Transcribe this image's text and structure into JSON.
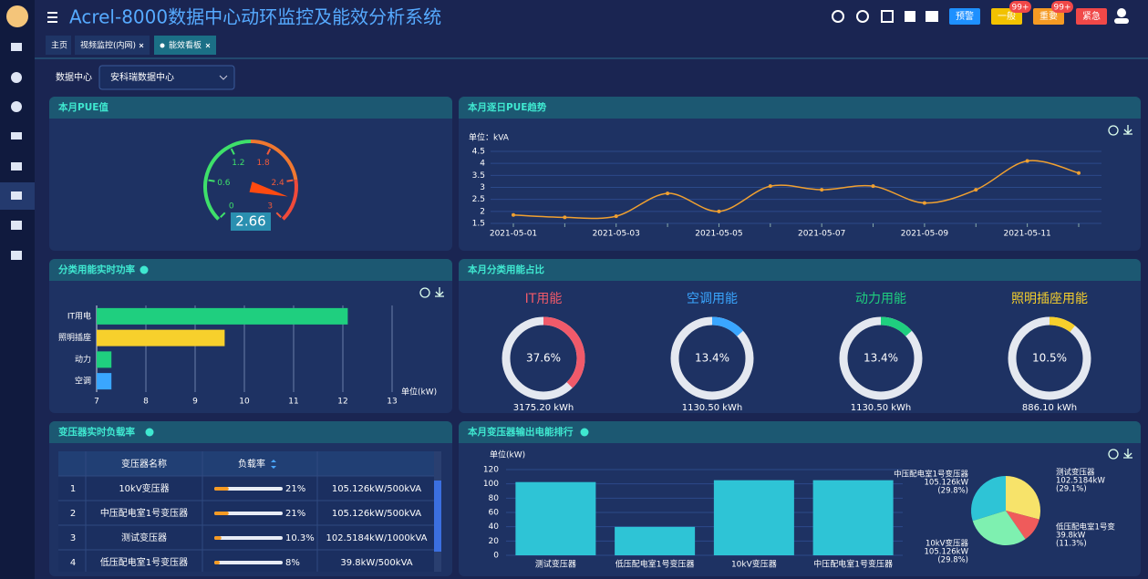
{
  "header": {
    "title": "Acrel-8000数据中心动环监控及能效分析系统",
    "buttons": [
      "预警",
      "一般",
      "重要",
      "紧急"
    ],
    "badges": [
      "99+",
      "99+"
    ]
  },
  "tabs": [
    "主页",
    "视频监控(内网)",
    "能效看板"
  ],
  "filter": {
    "label": "数据中心",
    "value": "安科瑞数据中心"
  },
  "gauge": {
    "title": "本月PUE值",
    "type": "gauge",
    "value": 2.66,
    "lim": [
      0,
      3
    ],
    "ticks": [
      0,
      0.6,
      1.2,
      1.8,
      2.4,
      3
    ]
  },
  "trend": {
    "title": "本月逐日PUE趋势",
    "type": "line",
    "unit": "单位：kVA",
    "color": "#f0a030",
    "categories": [
      "2021-05-01",
      null,
      "2021-05-03",
      null,
      "2021-05-05",
      null,
      "2021-05-07",
      null,
      "2021-05-09",
      null,
      "2021-05-11",
      null
    ],
    "values": [
      1.85,
      1.75,
      1.8,
      2.75,
      2.0,
      3.05,
      2.9,
      3.05,
      2.35,
      2.9,
      4.1,
      3.6
    ],
    "ylim": [
      1.5,
      4.5
    ],
    "yticks": [
      1.5,
      2,
      2.5,
      3,
      3.5,
      4,
      4.5
    ],
    "grid": true
  },
  "power": {
    "title": "分类用能实时功率",
    "type": "hbar",
    "unit": "单位(kW)",
    "categories": [
      "IT用电",
      "照明插座",
      "动力",
      "空调"
    ],
    "values": [
      12.1,
      9.6,
      7.3,
      7.3
    ],
    "colors": [
      "#1fcf7f",
      "#f7d02c",
      "#1fcf7f",
      "#3aa6ff"
    ],
    "xlim": [
      7,
      13
    ],
    "xticks": [
      7,
      8,
      9,
      10,
      11,
      12,
      13
    ],
    "grid": true
  },
  "share": {
    "title": "本月分类用能占比",
    "type": "donuts",
    "items": [
      {
        "name": "IT用能",
        "value": 37.6,
        "value_label": "37.6%",
        "energy": "3175.20 kWh",
        "color": "#f05a6a"
      },
      {
        "name": "空调用能",
        "value": 13.4,
        "value_label": "13.4%",
        "energy": "1130.50 kWh",
        "color": "#3aa6ff"
      },
      {
        "name": "动力用能",
        "value": 13.4,
        "value_label": "13.4%",
        "energy": "1130.50 kWh",
        "color": "#1fcf7f"
      },
      {
        "name": "照明插座用能",
        "value": 10.5,
        "value_label": "10.5%",
        "energy": "886.10 kWh",
        "color": "#f7d02c"
      }
    ]
  },
  "load": {
    "title": "变压器实时负载率",
    "columns": [
      "变压器名称",
      "负载率"
    ],
    "rows": [
      {
        "no": 1,
        "name": "10kV变压器",
        "load": 21,
        "load_label": "21%",
        "capacity": "105.126kW/500kVA"
      },
      {
        "no": 2,
        "name": "中压配电室1号变压器",
        "load": 21,
        "load_label": "21%",
        "capacity": "105.126kW/500kVA"
      },
      {
        "no": 3,
        "name": "测试变压器",
        "load": 10.3,
        "load_label": "10.3%",
        "capacity": "102.5184kW/1000kVA"
      },
      {
        "no": 4,
        "name": "低压配电室1号变压器",
        "load": 8,
        "load_label": "8%",
        "capacity": "39.8kW/500kVA"
      }
    ]
  },
  "rank": {
    "title": "本月变压器输出电能排行",
    "type": "bar",
    "unit": "单位(kW)",
    "color": "#2ec4d6",
    "categories": [
      "测试变压器",
      "低压配电室1号变压器",
      "10kV变压器",
      "中压配电室1号变压器"
    ],
    "values": [
      102.5184,
      39.8,
      105.126,
      105.126
    ],
    "ylim": [
      0,
      120
    ],
    "yticks": [
      0,
      20,
      40,
      60,
      80,
      100,
      120
    ],
    "grid": true,
    "pie": {
      "type": "pie",
      "names": [
        "中压配电室1号变压器",
        "测试变压器",
        "低压配电室1号变",
        "10kV变压器"
      ],
      "values": [
        29.8,
        29.1,
        11.3,
        29.8
      ],
      "value_labels": [
        "(29.8%)",
        "(29.1%)",
        "(11.3%)",
        "(29.8%)"
      ],
      "kw_labels": [
        "105.126kW",
        "102.5184kW",
        "39.8kW",
        "105.126kW"
      ],
      "colors": [
        "#2ec4d6",
        "#f7e36a",
        "#ef5b5b",
        "#7ef0b0"
      ]
    }
  }
}
